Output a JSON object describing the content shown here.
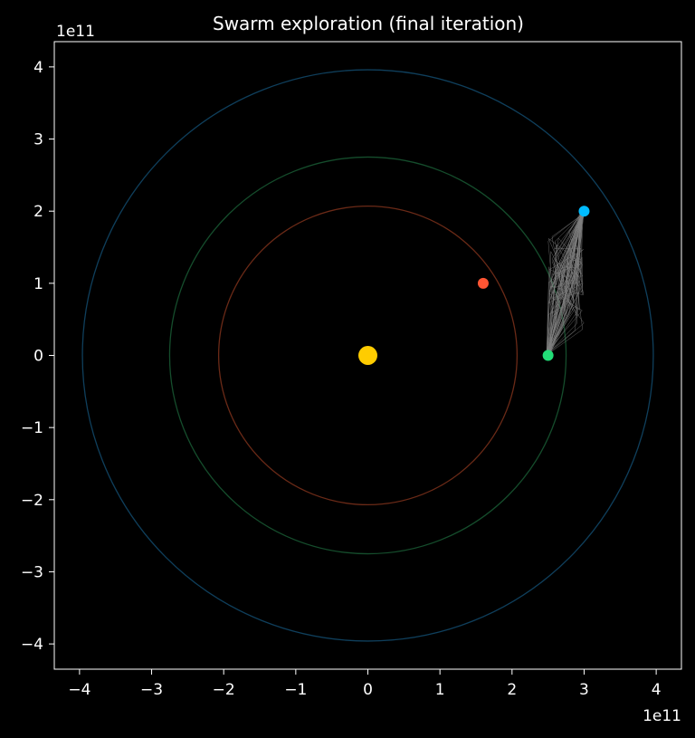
{
  "chart_data": {
    "type": "scatter",
    "title": "Swarm exploration (final iteration)",
    "xlabel": "",
    "ylabel": "",
    "x_offset_text": "1e11",
    "y_offset_text": "1e11",
    "xlim": [
      -4.35,
      4.35
    ],
    "ylim": [
      -4.35,
      4.35
    ],
    "x_ticks": [
      -4,
      -3,
      -2,
      -1,
      0,
      1,
      2,
      3,
      4
    ],
    "y_ticks": [
      -4,
      -3,
      -2,
      -1,
      0,
      1,
      2,
      3,
      4
    ],
    "x_tick_labels": [
      "−4",
      "−3",
      "−2",
      "−1",
      "0",
      "1",
      "2",
      "3",
      "4"
    ],
    "y_tick_labels": [
      "−4",
      "−3",
      "−2",
      "−1",
      "0",
      "1",
      "2",
      "3",
      "4"
    ],
    "grid": false,
    "legend": "none",
    "background_color": "#000000",
    "orbits": [
      {
        "radius": 2.07,
        "color": "#6b2a17"
      },
      {
        "radius": 2.75,
        "color": "#154d2c"
      },
      {
        "radius": 3.96,
        "color": "#0f3f5c"
      }
    ],
    "bodies": [
      {
        "x": 0,
        "y": 0,
        "color": "#ffcc00",
        "size": "large"
      },
      {
        "x": 1.6,
        "y": 1.0,
        "color": "#ff5533",
        "size": "small"
      },
      {
        "x": 2.5,
        "y": 0.0,
        "color": "#22dd77",
        "size": "small"
      },
      {
        "x": 3.0,
        "y": 2.0,
        "color": "#00bbff",
        "size": "small"
      }
    ],
    "swarm_trajectories": {
      "start": [
        2.5,
        0.0
      ],
      "end": [
        3.0,
        2.0
      ],
      "x_range": [
        2.5,
        3.0
      ],
      "y_range": [
        0.0,
        2.0
      ],
      "color": "#808080",
      "count": 60
    }
  }
}
